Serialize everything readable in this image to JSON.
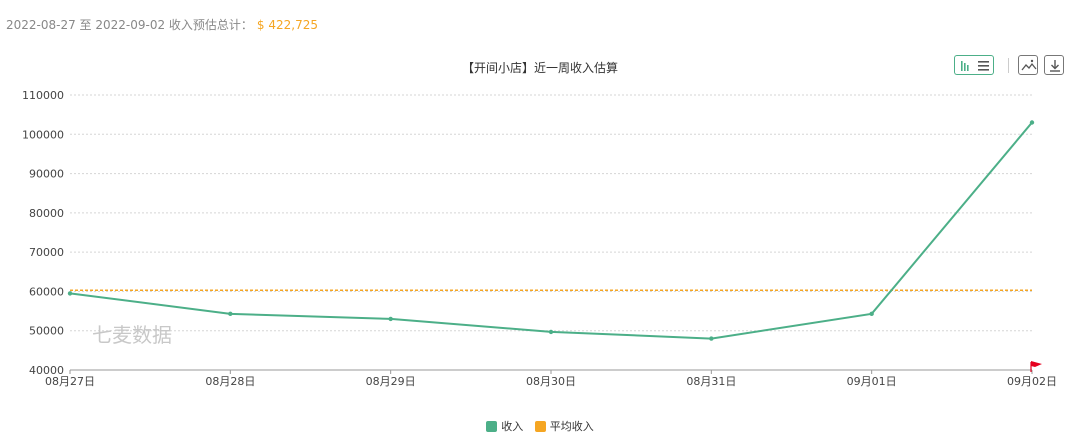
{
  "summary": {
    "range_text": "2022-08-27 至 2022-09-02 收入预估总计：",
    "total": "$ 422,725"
  },
  "toolbar": {
    "icons": [
      "bar-chart-icon",
      "list-icon",
      "image-icon",
      "download-icon"
    ]
  },
  "watermark": "七麦数据",
  "colors": {
    "income": "#4caf88",
    "average": "#f5a623",
    "flag": "#e6001f"
  },
  "chart_data": {
    "type": "line",
    "title": "【开间小店】近一周收入估算",
    "categories": [
      "08月27日",
      "08月28日",
      "08月29日",
      "08月30日",
      "08月31日",
      "09月01日",
      "09月02日"
    ],
    "series": [
      {
        "name": "收入",
        "values": [
          59500,
          54300,
          53000,
          49700,
          48000,
          54300,
          103000
        ]
      },
      {
        "name": "平均收入",
        "values": [
          60300,
          60300,
          60300,
          60300,
          60300,
          60300,
          60300
        ]
      }
    ],
    "ylim": [
      40000,
      110000
    ],
    "yticks": [
      "110000",
      "100000",
      "90000",
      "80000",
      "70000",
      "60000",
      "50000",
      "40000"
    ],
    "grid": true,
    "legend": "bottom-center"
  }
}
